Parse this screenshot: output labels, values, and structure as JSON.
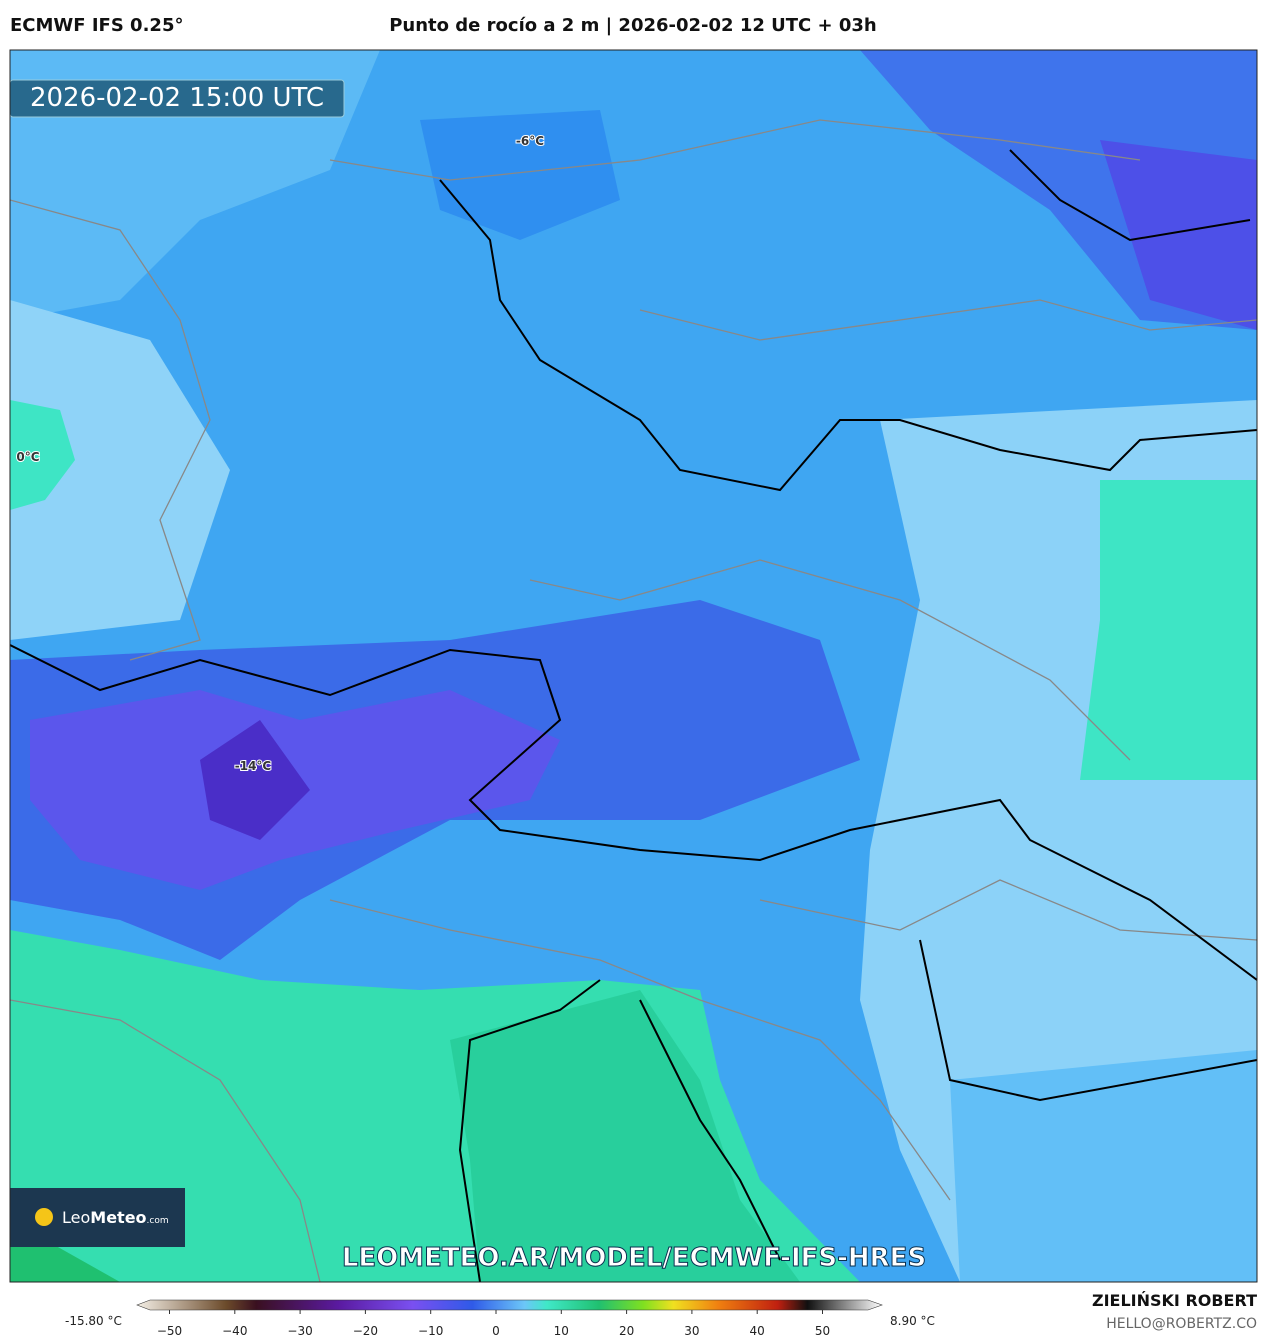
{
  "header": {
    "model": "ECMWF IFS 0.25°",
    "title": "Punto de rocío a 2 m | 2026-02-02 12 UTC + 03h"
  },
  "map": {
    "valid_time": "2026-02-02 15:00 UTC",
    "labels": [
      {
        "text": "-6°C"
      },
      {
        "text": "0°C"
      },
      {
        "text": "-14°C"
      }
    ],
    "logo": {
      "name": "Leo",
      "brand": "Meteo",
      "suffix": ".com"
    },
    "url": "LEOMETEO.AR/MODEL/ECMWF-IFS-HRES"
  },
  "colorbar": {
    "min_label": "-15.80 °C",
    "max_label": "8.90 °C",
    "ticks": [
      {
        "value": -50,
        "label": "−50"
      },
      {
        "value": -40,
        "label": "−40"
      },
      {
        "value": -30,
        "label": "−30"
      },
      {
        "value": -20,
        "label": "−20"
      },
      {
        "value": -10,
        "label": "−10"
      },
      0,
      10,
      20,
      30,
      40,
      50
    ]
  },
  "footer": {
    "author": "ZIELIŃSKI ROBERT",
    "email": "HELLO@ROBERTZ.CO"
  }
}
